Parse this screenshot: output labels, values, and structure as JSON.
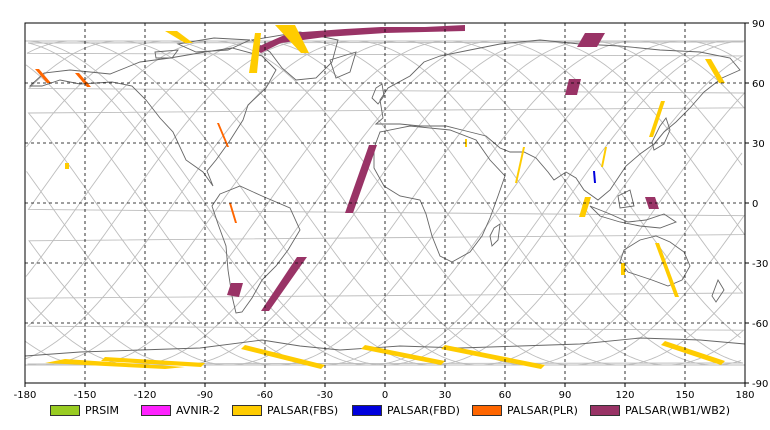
{
  "map": {
    "x_ticks": [
      "-180",
      "-150",
      "-120",
      "-90",
      "-60",
      "-30",
      "0",
      "30",
      "60",
      "90",
      "120",
      "150",
      "180"
    ],
    "y_ticks": [
      "90",
      "60",
      "30",
      "0",
      "-30",
      "-60",
      "-90"
    ],
    "lon_range": [
      -180,
      180
    ],
    "lat_range": [
      -90,
      90
    ],
    "grid": "on",
    "colors": {
      "coast": "#666666",
      "orbit": "#bdbdbd",
      "grid": "#000000"
    }
  },
  "legend": {
    "placement": "bottom",
    "items": [
      {
        "label": "PRSIM",
        "color": "#99cc22"
      },
      {
        "label": "AVNIR-2",
        "color": "#ff22ff"
      },
      {
        "label": "PALSAR(FBS)",
        "color": "#ffcc00"
      },
      {
        "label": "PALSAR(FBD)",
        "color": "#0000dd"
      },
      {
        "label": "PALSAR(PLR)",
        "color": "#ff6600"
      },
      {
        "label": "PALSAR(WB1/WB2)",
        "color": "#993366"
      }
    ]
  },
  "swaths": [
    {
      "mode": "PALSAR(WB1/WB2)",
      "poly": [
        [
          -66,
          77
        ],
        [
          -48,
          85
        ],
        [
          -20,
          87
        ],
        [
          -2,
          88
        ],
        [
          20,
          88
        ],
        [
          40,
          89
        ],
        [
          40,
          86
        ],
        [
          0,
          85
        ],
        [
          -30,
          83
        ],
        [
          -52,
          80
        ],
        [
          -62,
          75
        ]
      ]
    },
    {
      "mode": "PALSAR(WB1/WB2)",
      "poly": [
        [
          -8,
          29
        ],
        [
          -4,
          29
        ],
        [
          -16,
          -5
        ],
        [
          -20,
          -5
        ]
      ]
    },
    {
      "mode": "PALSAR(WB1/WB2)",
      "poly": [
        [
          -39,
          -27
        ],
        [
          -44,
          -27
        ],
        [
          -62,
          -54
        ],
        [
          -58,
          -54
        ]
      ]
    },
    {
      "mode": "PALSAR(WB1/WB2)",
      "poly": [
        [
          -77,
          -40
        ],
        [
          -71,
          -40
        ],
        [
          -73,
          -47
        ],
        [
          -79,
          -46
        ]
      ]
    },
    {
      "mode": "PALSAR(WB1/WB2)",
      "poly": [
        [
          100,
          85
        ],
        [
          110,
          85
        ],
        [
          106,
          78
        ],
        [
          96,
          78
        ]
      ]
    },
    {
      "mode": "PALSAR(WB1/WB2)",
      "poly": [
        [
          92,
          62
        ],
        [
          98,
          62
        ],
        [
          96,
          54
        ],
        [
          90,
          54
        ]
      ]
    },
    {
      "mode": "PALSAR(WB1/WB2)",
      "poly": [
        [
          130,
          3
        ],
        [
          135,
          3
        ],
        [
          137,
          -3
        ],
        [
          132,
          -3
        ]
      ]
    },
    {
      "mode": "PALSAR(PLR)",
      "poly": [
        [
          -84,
          40
        ],
        [
          -83,
          40
        ],
        [
          -78,
          28
        ],
        [
          -79,
          28
        ]
      ]
    },
    {
      "mode": "PALSAR(PLR)",
      "poly": [
        [
          -175,
          67
        ],
        [
          -173,
          67
        ],
        [
          -167,
          60
        ],
        [
          -169,
          60
        ]
      ]
    },
    {
      "mode": "PALSAR(PLR)",
      "poly": [
        [
          -155,
          65
        ],
        [
          -153,
          65
        ],
        [
          -147,
          58
        ],
        [
          -149,
          58
        ]
      ]
    },
    {
      "mode": "PALSAR(PLR)",
      "poly": [
        [
          -78,
          0
        ],
        [
          -77,
          0
        ],
        [
          -74,
          -10
        ],
        [
          -75,
          -10
        ]
      ]
    },
    {
      "mode": "PALSAR(FBD)",
      "poly": [
        [
          104,
          16
        ],
        [
          105,
          16
        ],
        [
          105.5,
          10
        ],
        [
          104.5,
          10
        ]
      ]
    },
    {
      "mode": "PALSAR(FBS)",
      "poly": [
        [
          -65,
          85
        ],
        [
          -62,
          85
        ],
        [
          -64,
          65
        ],
        [
          -68,
          65
        ]
      ]
    },
    {
      "mode": "PALSAR(FBS)",
      "poly": [
        [
          -55,
          89
        ],
        [
          -45,
          89
        ],
        [
          -38,
          75
        ],
        [
          -42,
          75
        ]
      ]
    },
    {
      "mode": "PALSAR(FBS)",
      "poly": [
        [
          -110,
          86
        ],
        [
          -104,
          86
        ],
        [
          -96,
          80
        ],
        [
          -100,
          80
        ]
      ]
    },
    {
      "mode": "PALSAR(FBS)",
      "poly": [
        [
          -160,
          20
        ],
        [
          -158,
          20
        ],
        [
          -158,
          17
        ],
        [
          -160,
          17
        ]
      ]
    },
    {
      "mode": "PALSAR(FBS)",
      "poly": [
        [
          69,
          28
        ],
        [
          70,
          28
        ],
        [
          66,
          10
        ],
        [
          65,
          10
        ]
      ]
    },
    {
      "mode": "PALSAR(FBS)",
      "poly": [
        [
          110,
          28
        ],
        [
          111,
          28
        ],
        [
          109,
          18
        ],
        [
          108,
          18
        ]
      ]
    },
    {
      "mode": "PALSAR(FBS)",
      "poly": [
        [
          100,
          3
        ],
        [
          103,
          3
        ],
        [
          100,
          -7
        ],
        [
          97,
          -7
        ]
      ]
    },
    {
      "mode": "PALSAR(FBS)",
      "poly": [
        [
          138,
          51
        ],
        [
          140,
          51
        ],
        [
          134,
          33
        ],
        [
          132,
          33
        ]
      ]
    },
    {
      "mode": "PALSAR(FBS)",
      "poly": [
        [
          160,
          72
        ],
        [
          163,
          72
        ],
        [
          170,
          60
        ],
        [
          167,
          60
        ]
      ]
    },
    {
      "mode": "PALSAR(FBS)",
      "poly": [
        [
          135,
          -20
        ],
        [
          137,
          -20
        ],
        [
          147,
          -47
        ],
        [
          145,
          -47
        ]
      ]
    },
    {
      "mode": "PALSAR(FBS)",
      "poly": [
        [
          118,
          -30
        ],
        [
          120,
          -30
        ],
        [
          120,
          -36
        ],
        [
          118,
          -36
        ]
      ]
    },
    {
      "mode": "PALSAR(FBS)",
      "poly": [
        [
          -170,
          -80
        ],
        [
          -110,
          -83
        ],
        [
          -100,
          -82
        ],
        [
          -160,
          -78
        ]
      ]
    },
    {
      "mode": "PALSAR(FBS)",
      "poly": [
        [
          -140,
          -77
        ],
        [
          -90,
          -80
        ],
        [
          -92,
          -82
        ],
        [
          -142,
          -79
        ]
      ]
    },
    {
      "mode": "PALSAR(FBS)",
      "poly": [
        [
          -70,
          -71
        ],
        [
          -30,
          -81
        ],
        [
          -32,
          -83
        ],
        [
          -72,
          -73
        ]
      ]
    },
    {
      "mode": "PALSAR(FBS)",
      "poly": [
        [
          -10,
          -71
        ],
        [
          30,
          -79
        ],
        [
          28,
          -81
        ],
        [
          -12,
          -73
        ]
      ]
    },
    {
      "mode": "PALSAR(FBS)",
      "poly": [
        [
          30,
          -71
        ],
        [
          80,
          -81
        ],
        [
          78,
          -83
        ],
        [
          28,
          -73
        ]
      ]
    },
    {
      "mode": "PALSAR(FBS)",
      "poly": [
        [
          140,
          -69
        ],
        [
          170,
          -79
        ],
        [
          168,
          -81
        ],
        [
          138,
          -71
        ]
      ]
    },
    {
      "mode": "PALSAR(FBS)",
      "poly": [
        [
          40,
          32
        ],
        [
          41,
          32
        ],
        [
          41,
          28
        ],
        [
          40,
          28
        ]
      ]
    }
  ]
}
